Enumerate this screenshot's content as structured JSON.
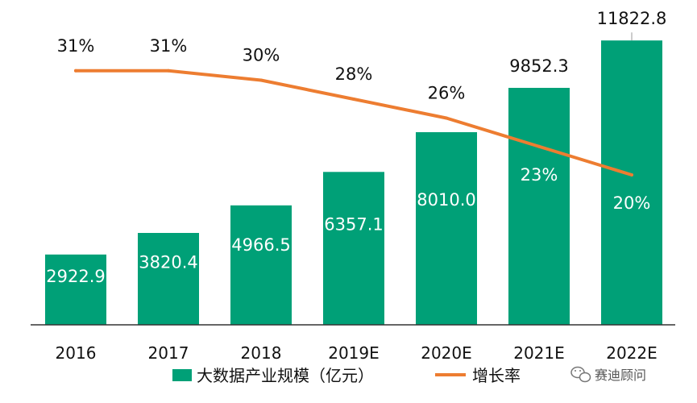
{
  "chart_data": {
    "type": "bar",
    "categories": [
      "2016",
      "2017",
      "2018",
      "2019E",
      "2020E",
      "2021E",
      "2022E"
    ],
    "series": [
      {
        "name": "大数据产业规模（亿元）",
        "type": "bar",
        "values": [
          2922.9,
          3820.4,
          4966.5,
          6357.1,
          8010.0,
          9852.3,
          11822.8
        ],
        "labels": [
          "2922.9",
          "3820.4",
          "4966.5",
          "6357.1",
          "8010.0",
          "9852.3",
          "11822.8"
        ]
      },
      {
        "name": "增长率",
        "type": "line",
        "values": [
          31,
          31,
          30,
          28,
          26,
          23,
          20
        ],
        "labels": [
          "31%",
          "31%",
          "30%",
          "28%",
          "26%",
          "23%",
          "20%"
        ]
      }
    ],
    "ylim": [
      0,
      12500
    ],
    "rate_ylim": [
      0,
      40
    ],
    "grid": false,
    "legend_position": "bottom"
  },
  "colors": {
    "bar": "#00a077",
    "line": "#ed7d31"
  },
  "watermark": "赛迪顾问",
  "watermark_icon": "wechat-icon"
}
